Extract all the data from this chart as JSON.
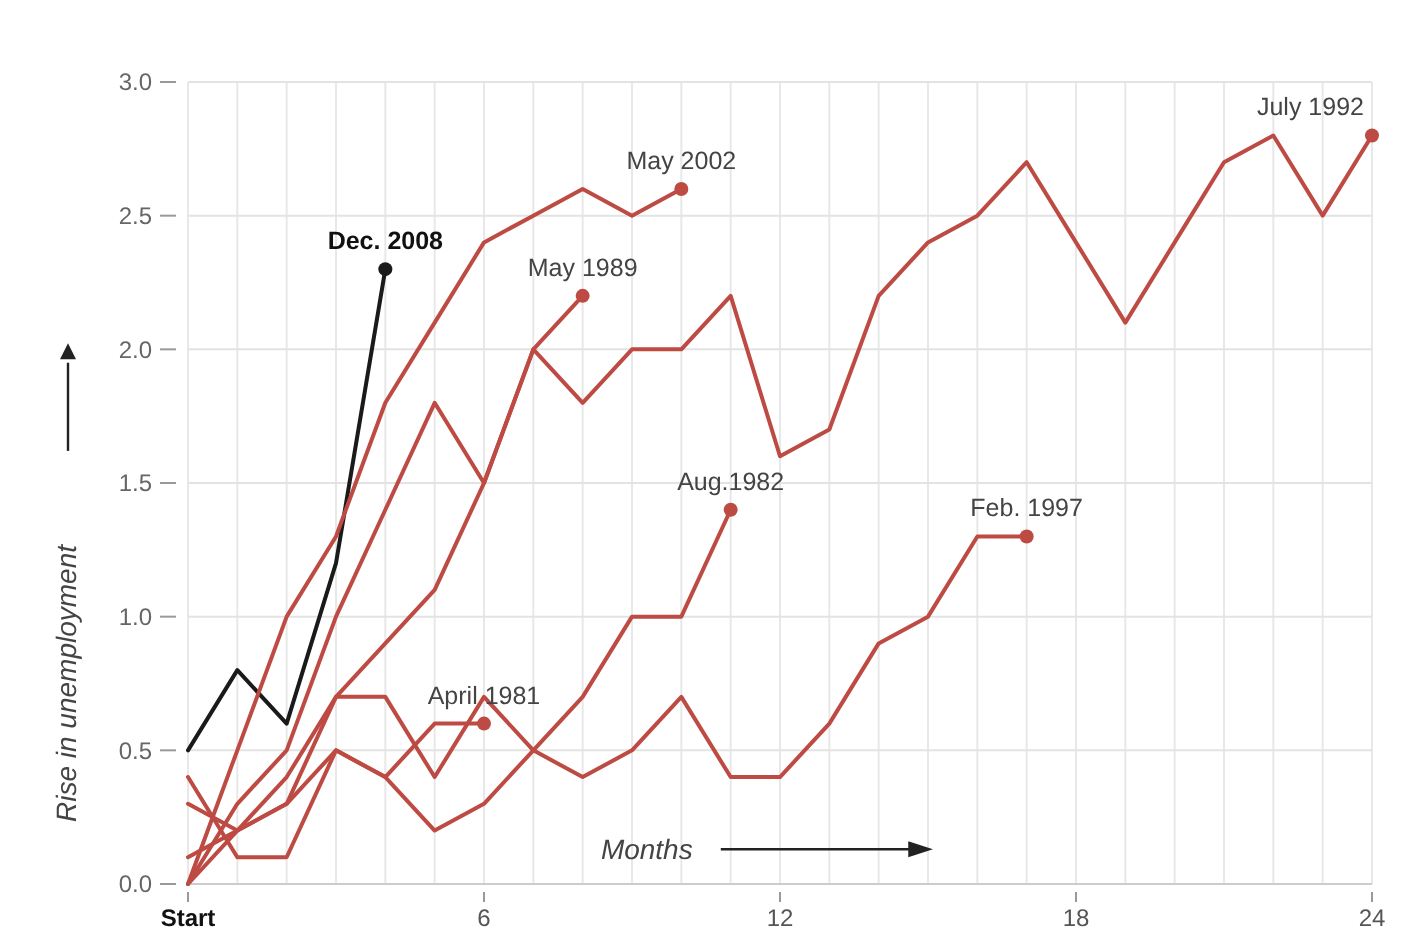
{
  "chart_data": {
    "type": "line",
    "ylabel": "Rise in unemployment",
    "annotations": [
      "Months"
    ],
    "x": [
      0,
      1,
      2,
      3,
      4,
      5,
      6,
      7,
      8,
      9,
      10,
      11,
      12,
      13,
      14,
      15,
      16,
      17,
      18,
      19,
      20,
      21,
      22,
      23,
      24
    ],
    "xlim": [
      0,
      24
    ],
    "xticks": [
      {
        "value": 0,
        "label": "Start"
      },
      6,
      12,
      18,
      24
    ],
    "ylim": [
      0,
      3
    ],
    "yticks": [
      {
        "value": 0,
        "label": "0.0"
      },
      0.5,
      {
        "value": 1,
        "label": "1.0"
      },
      1.5,
      {
        "value": 2,
        "label": "2.0"
      },
      2.5,
      {
        "value": 3,
        "label": "3.0"
      }
    ],
    "grid": true,
    "marker": "none",
    "line_style": "solid",
    "series": [
      {
        "name": "Dec. 2008",
        "color": "#1a1a1a",
        "x": [
          0,
          1,
          2,
          3,
          4
        ],
        "values": [
          0.5,
          0.8,
          0.6,
          1.2,
          2.3
        ]
      },
      {
        "name": "May 2002",
        "color": "#bd4b43",
        "x": [
          0,
          1,
          2,
          3,
          4,
          5,
          6,
          7,
          8,
          9,
          10
        ],
        "values": [
          0.0,
          0.5,
          1.0,
          1.3,
          1.8,
          2.1,
          2.4,
          2.5,
          2.6,
          2.5,
          2.6
        ]
      },
      {
        "name": "May 1989",
        "color": "#bd4b43",
        "x": [
          0,
          1,
          2,
          3,
          4,
          5,
          6,
          7,
          8
        ],
        "values": [
          0.0,
          0.3,
          0.5,
          1.0,
          1.4,
          1.8,
          1.5,
          2.0,
          2.2
        ]
      },
      {
        "name": "July 1992",
        "color": "#bd4b43",
        "values": [
          0.0,
          0.2,
          0.4,
          0.7,
          0.9,
          1.1,
          1.5,
          2.0,
          1.8,
          2.0,
          2.0,
          2.2,
          1.6,
          1.7,
          2.2,
          2.4,
          2.5,
          2.7,
          2.4,
          2.1,
          2.4,
          2.7,
          2.8,
          2.5,
          2.8
        ]
      },
      {
        "name": "Aug.1982",
        "color": "#bd4b43",
        "x": [
          0,
          1,
          2,
          3,
          4,
          5,
          6,
          7,
          8,
          9,
          10,
          11
        ],
        "values": [
          0.3,
          0.2,
          0.3,
          0.5,
          0.4,
          0.2,
          0.3,
          0.5,
          0.7,
          1.0,
          1.0,
          1.4
        ]
      },
      {
        "name": "Feb. 1997",
        "color": "#bd4b43",
        "x": [
          0,
          1,
          2,
          3,
          4,
          5,
          6,
          7,
          8,
          9,
          10,
          11,
          12,
          13,
          14,
          15,
          16,
          17
        ],
        "values": [
          0.1,
          0.2,
          0.3,
          0.7,
          0.7,
          0.4,
          0.7,
          0.5,
          0.4,
          0.5,
          0.7,
          0.4,
          0.4,
          0.6,
          0.9,
          1.0,
          1.3,
          1.3
        ]
      },
      {
        "name": "April 1981",
        "color": "#bd4b43",
        "x": [
          0,
          1,
          2,
          3,
          4,
          5,
          6
        ],
        "values": [
          0.4,
          0.1,
          0.1,
          0.5,
          0.4,
          0.6,
          0.6
        ]
      }
    ]
  }
}
